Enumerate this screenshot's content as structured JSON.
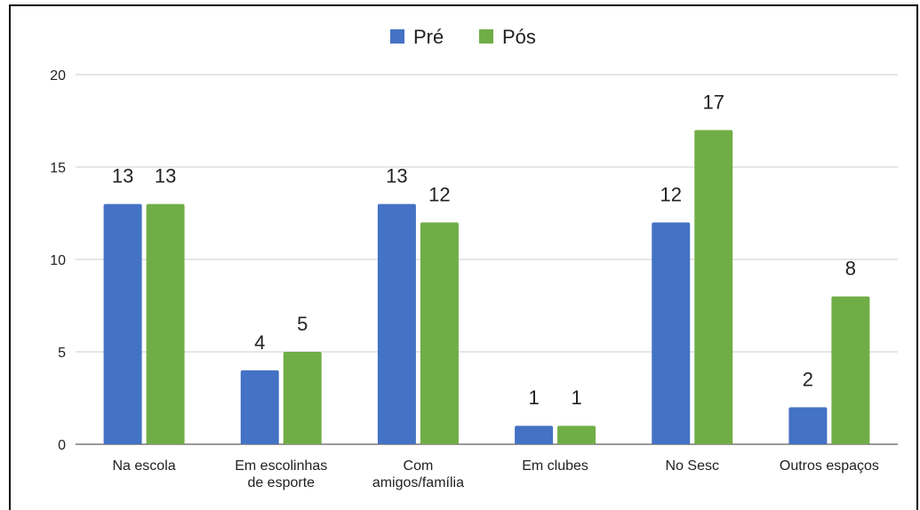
{
  "chart_data": {
    "type": "bar",
    "title": "",
    "xlabel": "",
    "ylabel": "",
    "ylim": [
      0,
      20
    ],
    "yticks": [
      0,
      5,
      10,
      15,
      20
    ],
    "grid": true,
    "legend_position": "top-center",
    "categories": [
      [
        "Na escola"
      ],
      [
        "Em escolinhas",
        "de esporte"
      ],
      [
        "Com",
        "amigos/família"
      ],
      [
        "Em clubes"
      ],
      [
        "No Sesc"
      ],
      [
        "Outros espaços"
      ]
    ],
    "series": [
      {
        "name": "Pré",
        "color": "#4472c4",
        "values": [
          13,
          4,
          13,
          1,
          12,
          2
        ]
      },
      {
        "name": "Pós",
        "color": "#70ad47",
        "values": [
          13,
          5,
          12,
          1,
          17,
          8
        ]
      }
    ]
  }
}
